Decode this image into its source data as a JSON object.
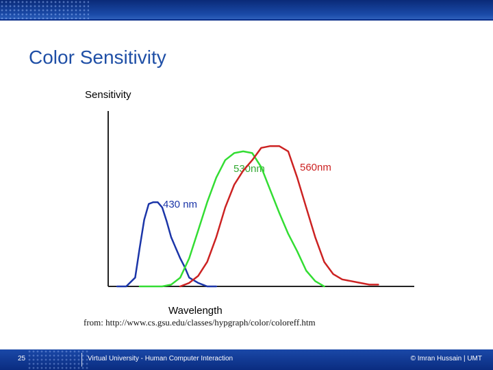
{
  "slide": {
    "title": "Color Sensitivity",
    "source": "from: http://www.cs.gsu.edu/classes/hypgraph/color/coloreff.htm",
    "page_number": "25",
    "course": "Virtual University - Human Computer Interaction",
    "author": "© Imran Hussain | UMT"
  },
  "colors": {
    "title": "#1f4fa6",
    "axis": "#222222",
    "short_curve": "#1b35a8",
    "medium_curve": "#33dd33",
    "long_curve": "#cc2222",
    "band": "#1a4aa8"
  },
  "chart_data": {
    "type": "line",
    "ylabel": "Sensitivity",
    "xlabel": "Wavelength",
    "xlim": [
      380,
      720
    ],
    "ylim": [
      0,
      1.0
    ],
    "grid": false,
    "series": [
      {
        "name": "430 nm",
        "color": "#1b35a8",
        "x": [
          390,
          400,
          410,
          415,
          420,
          425,
          430,
          435,
          440,
          445,
          450,
          455,
          460,
          465,
          470,
          480,
          490,
          500
        ],
        "y": [
          0,
          0,
          0.05,
          0.22,
          0.38,
          0.47,
          0.48,
          0.48,
          0.45,
          0.37,
          0.28,
          0.22,
          0.16,
          0.11,
          0.05,
          0.02,
          0,
          0
        ]
      },
      {
        "name": "530nm",
        "color": "#33dd33",
        "x": [
          415,
          430,
          440,
          450,
          460,
          470,
          480,
          490,
          500,
          510,
          520,
          530,
          540,
          550,
          560,
          570,
          580,
          590,
          600,
          610,
          620
        ],
        "y": [
          0,
          0,
          0,
          0.01,
          0.05,
          0.16,
          0.32,
          0.48,
          0.62,
          0.72,
          0.76,
          0.77,
          0.76,
          0.68,
          0.55,
          0.42,
          0.3,
          0.2,
          0.09,
          0.03,
          0
        ]
      },
      {
        "name": "560nm",
        "color": "#cc2222",
        "x": [
          460,
          470,
          480,
          490,
          500,
          510,
          520,
          530,
          540,
          550,
          560,
          570,
          580,
          590,
          600,
          610,
          620,
          630,
          640,
          650,
          660,
          670,
          680
        ],
        "y": [
          0,
          0.02,
          0.06,
          0.14,
          0.28,
          0.45,
          0.58,
          0.66,
          0.72,
          0.79,
          0.8,
          0.8,
          0.77,
          0.62,
          0.45,
          0.28,
          0.14,
          0.07,
          0.04,
          0.03,
          0.02,
          0.01,
          0.01
        ]
      }
    ]
  }
}
